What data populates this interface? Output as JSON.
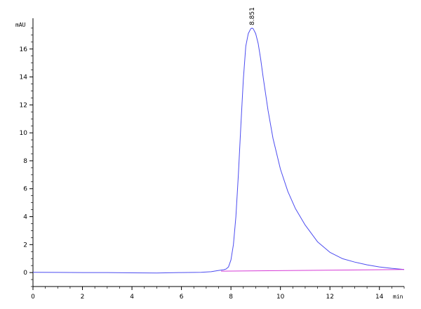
{
  "chart_data": {
    "type": "line",
    "ylabel": "mAU",
    "xlabel": "min",
    "xlim": [
      0,
      15
    ],
    "ylim": [
      -1,
      18
    ],
    "x_ticks": [
      "0",
      "2",
      "4",
      "6",
      "8",
      "10",
      "12",
      "14"
    ],
    "y_ticks": [
      "0",
      "2",
      "4",
      "6",
      "8",
      "10",
      "12",
      "14",
      "16"
    ],
    "peak_label": "8.851",
    "peak": {
      "x": 8.851,
      "y": 17.5
    },
    "grid": false,
    "series": [
      {
        "color": "#4c4cf0",
        "x": [
          0,
          1,
          2,
          3,
          4,
          5,
          6,
          6.8,
          7.2,
          7.5,
          7.7,
          7.8,
          7.9,
          8.0,
          8.1,
          8.2,
          8.3,
          8.4,
          8.5,
          8.6,
          8.7,
          8.8,
          8.851,
          8.9,
          9.0,
          9.1,
          9.2,
          9.3,
          9.4,
          9.5,
          9.7,
          10.0,
          10.3,
          10.6,
          11.0,
          11.5,
          12.0,
          12.5,
          13.0,
          13.5,
          14.0,
          14.5,
          15.0
        ],
        "values": [
          0.02,
          0.01,
          0.0,
          0.0,
          -0.02,
          -0.03,
          0.0,
          0.02,
          0.06,
          0.15,
          0.2,
          0.25,
          0.4,
          0.9,
          2.0,
          4.0,
          7.0,
          10.5,
          13.8,
          16.2,
          17.1,
          17.45,
          17.5,
          17.45,
          17.1,
          16.4,
          15.3,
          14.0,
          12.8,
          11.6,
          9.6,
          7.4,
          5.8,
          4.6,
          3.4,
          2.2,
          1.45,
          1.0,
          0.75,
          0.55,
          0.4,
          0.3,
          0.22
        ]
      },
      {
        "color": "#d63ad6",
        "x": [
          7.6,
          15.0
        ],
        "values": [
          0.1,
          0.22
        ]
      }
    ]
  }
}
